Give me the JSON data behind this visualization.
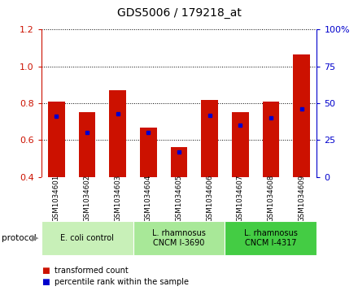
{
  "title": "GDS5006 / 179218_at",
  "samples": [
    "GSM1034601",
    "GSM1034602",
    "GSM1034603",
    "GSM1034604",
    "GSM1034605",
    "GSM1034606",
    "GSM1034607",
    "GSM1034608",
    "GSM1034609"
  ],
  "transformed_counts": [
    0.81,
    0.75,
    0.87,
    0.67,
    0.56,
    0.82,
    0.75,
    0.81,
    1.065
  ],
  "percentile_ranks_pct": [
    41,
    30,
    43,
    30,
    17,
    42,
    35,
    40,
    46
  ],
  "ylim_left": [
    0.4,
    1.2
  ],
  "ylim_right": [
    0,
    100
  ],
  "yticks_left": [
    0.4,
    0.6,
    0.8,
    1.0,
    1.2
  ],
  "yticks_right": [
    0,
    25,
    50,
    75,
    100
  ],
  "bar_color": "#cc1100",
  "point_color": "#0000cc",
  "bar_width": 0.55,
  "groups": [
    {
      "label": "E. coli control",
      "start": 0,
      "end": 3,
      "color": "#c8f0b8"
    },
    {
      "label": "L. rhamnosus\nCNCM I-3690",
      "start": 3,
      "end": 6,
      "color": "#a8e898"
    },
    {
      "label": "L. rhamnosus\nCNCM I-4317",
      "start": 6,
      "end": 9,
      "color": "#44cc44"
    }
  ],
  "legend_items": [
    {
      "color": "#cc1100",
      "label": "transformed count"
    },
    {
      "color": "#0000cc",
      "label": "percentile rank within the sample"
    }
  ],
  "background_color": "#ffffff",
  "tick_label_area_bg": "#cccccc",
  "title_fontsize": 10,
  "axis_fontsize": 8,
  "label_fontsize": 7
}
